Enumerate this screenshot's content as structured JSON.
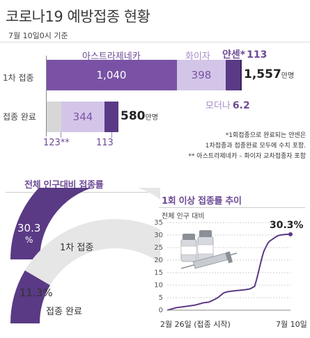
{
  "header": {
    "title": "코로나19 예방접종 현황",
    "date": "7월 10일0시 기준"
  },
  "chart_data": [
    {
      "type": "bar",
      "orientation": "horizontal",
      "stacked": true,
      "unit": "만명",
      "categories": [
        "1차 접종",
        "접종 완료"
      ],
      "series": [
        {
          "name": "아스트라제네카",
          "values": [
            1040,
            123
          ]
        },
        {
          "name": "화이자",
          "values": [
            398,
            344
          ]
        },
        {
          "name": "얀센*",
          "values": [
            113,
            113
          ]
        },
        {
          "name": "모더나",
          "values": [
            6.2,
            0
          ]
        }
      ],
      "totals": [
        "1,557",
        "580"
      ],
      "value_labels": {
        "first_dose": [
          "1,040",
          "398"
        ],
        "completed": [
          "344"
        ]
      },
      "outside_labels": {
        "janssen": "113",
        "moderna": "6.2",
        "completed_az": "123**",
        "completed_janssen": "113"
      }
    },
    {
      "type": "pie",
      "title": "전체 인구대비 접종률",
      "items": [
        {
          "name": "1차 접종",
          "value": 30.3,
          "label": "30.3",
          "unit": "%"
        },
        {
          "name": "접종 완료",
          "value": 11.3,
          "label": "11.3%"
        }
      ]
    },
    {
      "type": "line",
      "title": "1회 이상  접종률 추이",
      "ylabel": "전체 인구 대비",
      "xlabel_start": "2월 26일 (접종 시작)",
      "xlabel_end": "7월 10일",
      "end_label": "30.3%",
      "ylim": [
        0,
        35
      ],
      "yticks": [
        "0",
        "5",
        "10",
        "15",
        "20",
        "25",
        "30",
        "35"
      ],
      "x": [
        0,
        5,
        10,
        20,
        30,
        35,
        40,
        45,
        50,
        55,
        60,
        62,
        64,
        66,
        70,
        75,
        80,
        85,
        90,
        95,
        97,
        99,
        101,
        103,
        105,
        107,
        109,
        111,
        113,
        115,
        117,
        119,
        121,
        123,
        125,
        127,
        130,
        133,
        134
      ],
      "values": [
        0,
        0.5,
        1,
        1.5,
        2,
        2.5,
        3,
        3.2,
        4,
        5,
        6.5,
        7,
        7.2,
        7.4,
        7.6,
        7.8,
        8,
        8.2,
        8.5,
        9.5,
        12,
        15,
        18,
        21,
        23.5,
        25,
        26.5,
        27.5,
        28,
        28.5,
        29,
        29.5,
        29.8,
        30,
        30.1,
        30.2,
        30.3,
        30.3,
        30.3
      ]
    }
  ],
  "footnote": {
    "line1": "*1회접종으로 완료되는 얀센은",
    "line2": "1차접종과 접종완료 모두에 수치 포함.",
    "line3": "** 아스트라제네카 – 화이자 교차접종자 포함"
  },
  "colors": {
    "purple": "#6d4a95",
    "dark_purple": "#4f3373",
    "lavender": "#d3c5e8",
    "light_lavender": "#c4b2df",
    "grey": "#d7d7d7",
    "donut_bg": "#e6e6e6"
  },
  "icons": [
    "vaccine-vials-icon",
    "syringe-icon"
  ]
}
